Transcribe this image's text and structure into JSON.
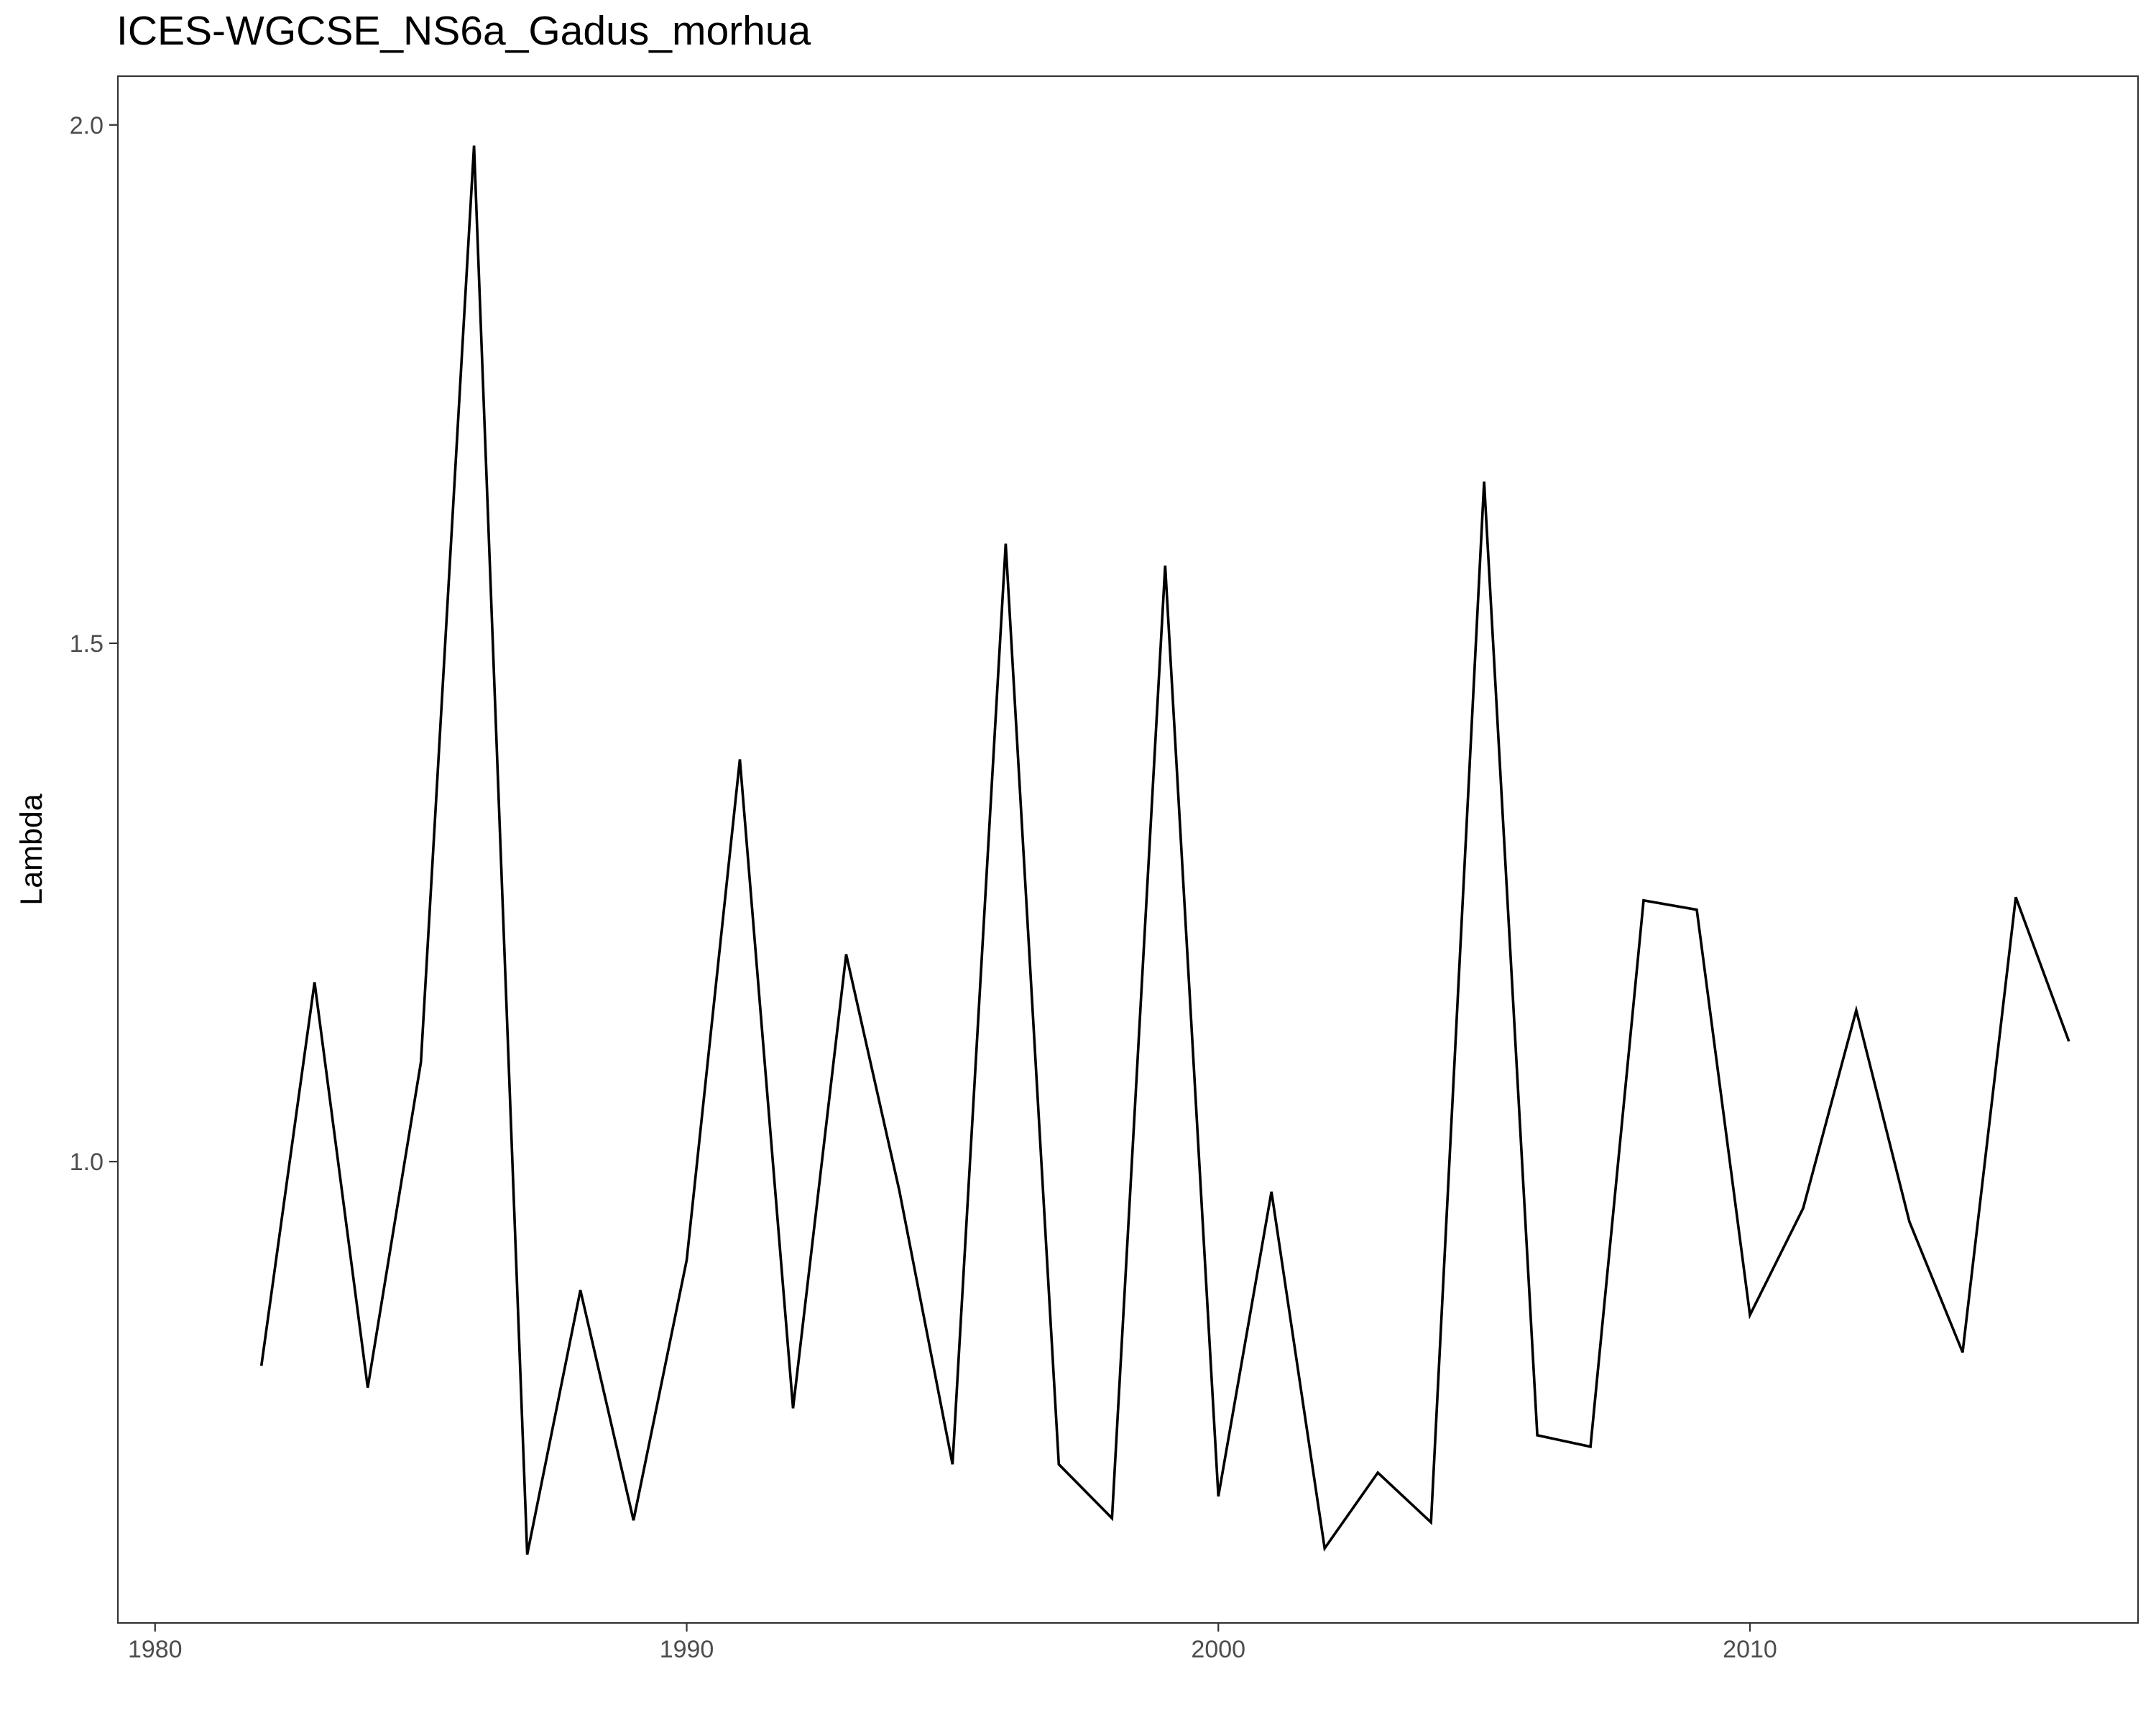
{
  "chart_data": {
    "type": "line",
    "title": "ICES-WGCSE_NS6a_Gadus_morhua",
    "xlabel": "",
    "ylabel": "Lambda",
    "xlim": [
      1979.3,
      2017.3
    ],
    "ylim": [
      0.555,
      2.047
    ],
    "x_ticks": [
      1980,
      1990,
      2000,
      2010
    ],
    "y_ticks": [
      1.0,
      1.5,
      2.0
    ],
    "x_tick_labels": [
      "1980",
      "1990",
      "2000",
      "2010"
    ],
    "y_tick_labels": [
      "1.0",
      "1.5",
      "2.0"
    ],
    "grid": false,
    "series": [
      {
        "x": [
          1982,
          1983,
          1984,
          1985,
          1986,
          1987,
          1988,
          1989,
          1990,
          1991,
          1992,
          1993,
          1994,
          1995,
          1996,
          1997,
          1998,
          1999,
          2000,
          2001,
          2002,
          2003,
          2004,
          2005,
          2006,
          2007,
          2008,
          2009,
          2010,
          2011,
          2012,
          2013,
          2014,
          2015,
          2016
        ],
        "values": [
          0.803,
          1.173,
          0.782,
          1.096,
          1.98,
          0.621,
          0.876,
          0.654,
          0.905,
          1.388,
          0.762,
          1.2,
          0.972,
          0.708,
          1.596,
          0.708,
          0.656,
          1.575,
          0.677,
          0.971,
          0.627,
          0.7,
          0.652,
          1.656,
          0.736,
          0.725,
          1.252,
          1.243,
          0.852,
          0.955,
          1.146,
          0.942,
          0.816,
          1.255,
          1.116
        ]
      }
    ],
    "line_color": "#000000"
  }
}
